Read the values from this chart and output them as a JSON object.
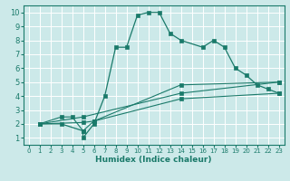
{
  "xlabel": "Humidex (Indice chaleur)",
  "bg_color": "#cce9e9",
  "grid_color": "#ffffff",
  "line_color": "#1a7a6a",
  "xlim": [
    -0.5,
    23.5
  ],
  "ylim": [
    0.5,
    10.5
  ],
  "xticks": [
    0,
    1,
    2,
    3,
    4,
    5,
    6,
    7,
    8,
    9,
    10,
    11,
    12,
    13,
    14,
    15,
    16,
    17,
    18,
    19,
    20,
    21,
    22,
    23
  ],
  "yticks": [
    1,
    2,
    3,
    4,
    5,
    6,
    7,
    8,
    9,
    10
  ],
  "line1_x": [
    1,
    3,
    5,
    5,
    6,
    7,
    8,
    9,
    10,
    11,
    12,
    13,
    14,
    16,
    17,
    18,
    19,
    20,
    21,
    22,
    23
  ],
  "line1_y": [
    2,
    2,
    1.5,
    1,
    2,
    4,
    7.5,
    7.5,
    9.8,
    10,
    10,
    8.5,
    8,
    7.5,
    8,
    7.5,
    6,
    5.5,
    4.8,
    4.5,
    4.2
  ],
  "line2_x": [
    1,
    3,
    4,
    5,
    6,
    14,
    23
  ],
  "line2_y": [
    2,
    2.5,
    2.5,
    1.5,
    2.2,
    4.8,
    5.0
  ],
  "line3_x": [
    1,
    5,
    6,
    14,
    23
  ],
  "line3_y": [
    2,
    2.1,
    2.2,
    3.8,
    4.2
  ],
  "line4_x": [
    1,
    5,
    14,
    23
  ],
  "line4_y": [
    2,
    2.5,
    4.2,
    5.0
  ]
}
